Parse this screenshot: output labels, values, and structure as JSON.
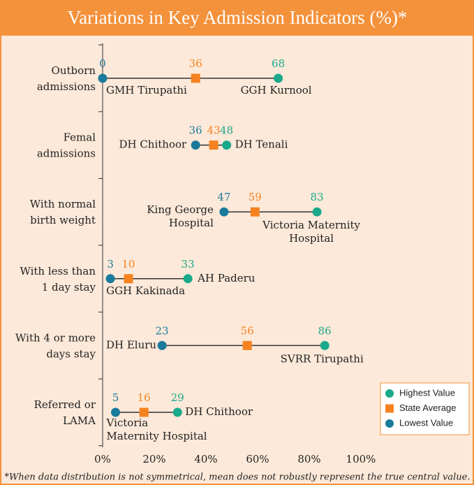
{
  "chart_data": {
    "type": "dumbbell",
    "title": "Variations in Key Admission Indicators (%)*",
    "footnote": "*When data distribution is not symmetrical, mean does not robustly represent the true central value.",
    "categories": [
      [
        "Outborn",
        "admissions"
      ],
      [
        "Femal",
        "admissions"
      ],
      [
        "With normal",
        "birth weight"
      ],
      [
        "With less than",
        "1 day stay"
      ],
      [
        "With 4 or more",
        "days stay"
      ],
      [
        "Referred or",
        "LAMA"
      ]
    ],
    "series": [
      {
        "name": "Highest Value",
        "color": "#1aa98a",
        "marker": "circle",
        "values": [
          68,
          48,
          83,
          33,
          86,
          29
        ],
        "point_labels": [
          [
            "GGH Kurnool"
          ],
          [
            "DH Tenali"
          ],
          [
            "Victoria Maternity",
            "Hospital"
          ],
          [
            "AH Paderu"
          ],
          [
            "SVRR Tirupathi"
          ],
          [
            "DH Chithoor"
          ]
        ]
      },
      {
        "name": "State Average",
        "color": "#f58220",
        "marker": "square",
        "values": [
          36,
          43,
          59,
          10,
          56,
          16
        ]
      },
      {
        "name": "Lowest Value",
        "color": "#1a7b9c",
        "marker": "circle",
        "values": [
          0,
          36,
          47,
          3,
          23,
          5
        ],
        "point_labels": [
          [
            "GMH Tirupathi"
          ],
          [
            "DH Chithoor"
          ],
          [
            "King George",
            "Hospital"
          ],
          [
            "GGH Kakinada"
          ],
          [
            "DH Eluru"
          ],
          [
            "Victoria",
            "Maternity Hospital"
          ]
        ]
      }
    ],
    "xlim": [
      0,
      100
    ],
    "xticks": [
      {
        "value": 0,
        "label": "0%"
      },
      {
        "value": 20,
        "label": "20%"
      },
      {
        "value": 40,
        "label": "40%"
      },
      {
        "value": 60,
        "label": "60%"
      },
      {
        "value": 80,
        "label": "80%"
      },
      {
        "value": 100,
        "label": "100%"
      }
    ],
    "legend": "lower right"
  }
}
